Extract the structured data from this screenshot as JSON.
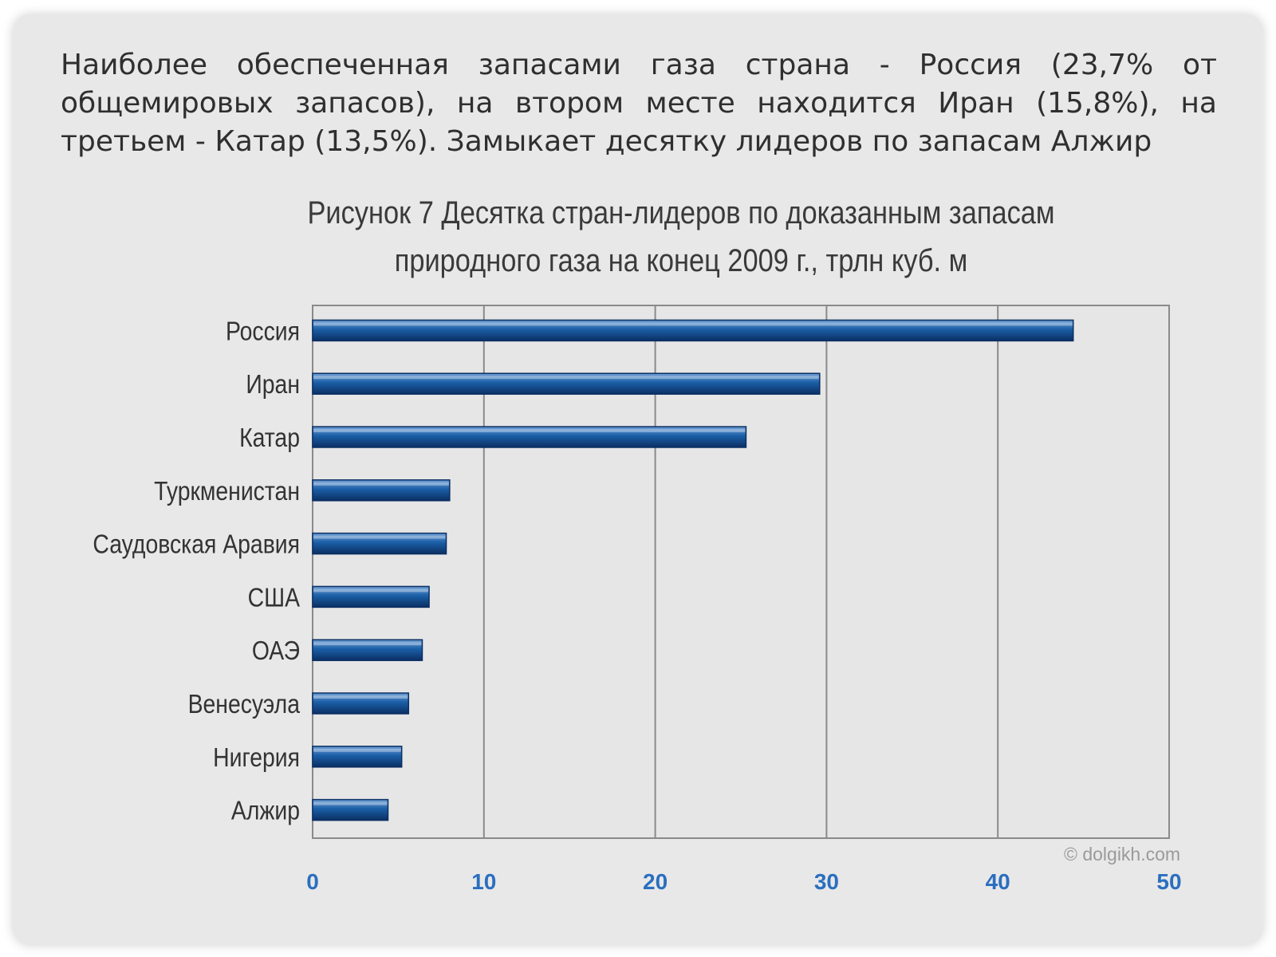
{
  "slide": {
    "intro_text": "Наиболее обеспеченная запасами газа страна - Россия (23,7% от общемировых запасов), на втором месте находится Иран (15,8%), на третьем - Катар (13,5%). Замыкает десятку лидеров по запасам Алжир"
  },
  "chart_data": {
    "type": "bar",
    "orientation": "horizontal",
    "title": "Рисунок 7 Десятка стран-лидеров по доказанным запасам природного газа на конец 2009 г., трлн куб. м",
    "title_lines": [
      "Рисунок 7 Десятка стран-лидеров по доказанным запасам",
      "природного газа на конец 2009 г., трлн куб. м"
    ],
    "categories": [
      "Россия",
      "Иран",
      "Катар",
      "Туркменистан",
      "Саудовская Аравия",
      "США",
      "ОАЭ",
      "Венесуэла",
      "Нигерия",
      "Алжир"
    ],
    "values": [
      44.4,
      29.6,
      25.3,
      8.0,
      7.8,
      6.8,
      6.4,
      5.6,
      5.2,
      4.4
    ],
    "xlim": [
      0,
      50
    ],
    "xticks": [
      0,
      10,
      20,
      30,
      40,
      50
    ],
    "grid": true,
    "legend": "none",
    "watermark": "© dolgikh.com",
    "colors": {
      "bar": "#1a5ea6",
      "bar_dark": "#0b2f63",
      "bar_light": "#6f9fd6",
      "tick_label": "#2a6fbf",
      "category_label": "#333333",
      "grid": "#8a8a8a",
      "plot_bg": "#e6e6e6"
    }
  }
}
